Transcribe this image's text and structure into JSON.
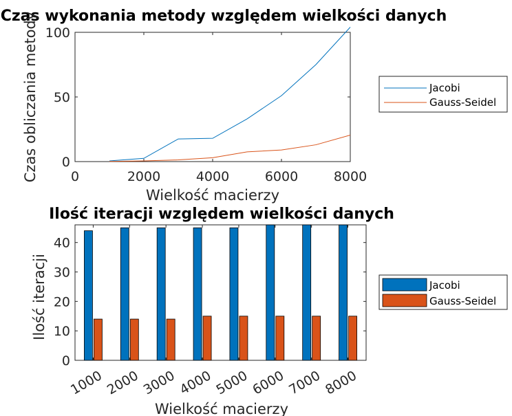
{
  "chart_data": [
    {
      "type": "line",
      "title": "Czas wykonania metody względem wielkości danych",
      "xlabel": "Wielkość macierzy",
      "ylabel": "Czas obliczania metody",
      "xlim": [
        0,
        8000
      ],
      "ylim": [
        0,
        100
      ],
      "xticks": [
        "0",
        "2000",
        "4000",
        "6000",
        "8000"
      ],
      "yticks": [
        "0",
        "50",
        "100"
      ],
      "x": [
        1000,
        2000,
        3000,
        4000,
        5000,
        6000,
        7000,
        8000
      ],
      "series": [
        {
          "name": "Jacobi",
          "color": "#0072BD",
          "values": [
            0.5,
            2.5,
            17.5,
            18,
            33,
            51,
            75,
            104
          ]
        },
        {
          "name": "Gauss-Seidel",
          "color": "#D95319",
          "values": [
            0.1,
            0.5,
            1.3,
            3,
            7.5,
            9,
            13,
            20.5
          ]
        }
      ],
      "legend": "right"
    },
    {
      "type": "bar",
      "title": "Ilość iteracji względem wielkości danych",
      "xlabel": "Wielkość macierzy",
      "ylabel": "Ilość iteracji",
      "ylim": [
        0,
        46
      ],
      "yticks": [
        "0",
        "10",
        "20",
        "30",
        "40"
      ],
      "categories": [
        "1000",
        "2000",
        "3000",
        "4000",
        "5000",
        "6000",
        "7000",
        "8000"
      ],
      "series": [
        {
          "name": "Jacobi",
          "color": "#0072BD",
          "values": [
            44,
            45,
            45,
            45,
            45,
            46,
            46,
            46
          ]
        },
        {
          "name": "Gauss-Seidel",
          "color": "#D95319",
          "values": [
            14,
            14,
            14,
            15,
            15,
            15,
            15,
            15
          ]
        }
      ],
      "legend": "right"
    }
  ]
}
